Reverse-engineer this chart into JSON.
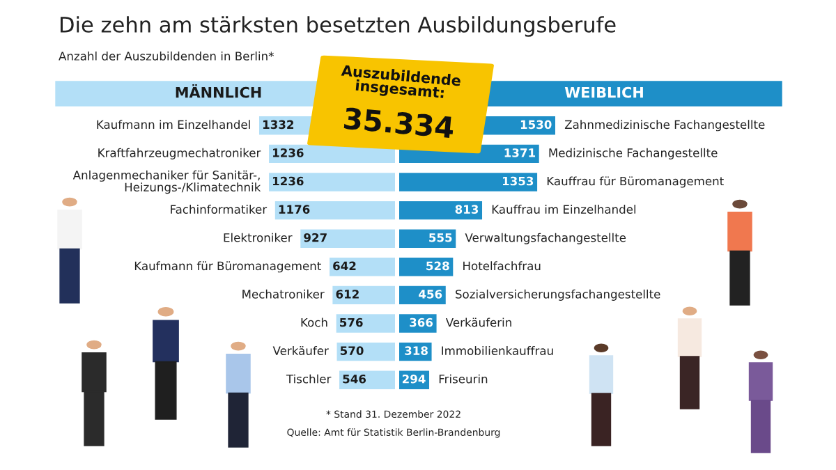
{
  "chart_data": [
    {
      "type": "bar",
      "orientation": "horizontal",
      "title": "Die zehn am stärksten besetzten Ausbildungsberufe",
      "subtitle": "Anzahl der Auszubildenden in Berlin*",
      "categories": [
        "Kaufmann im Einzelhandel",
        "Kraftfahrzeugmechatroniker",
        "Anlagenmechaniker für Sanitär-,\nHeizungs-/Klimatechnik",
        "Fachinformatiker",
        "Elektroniker",
        "Kaufmann für Büromanagement",
        "Mechatroniker",
        "Koch",
        "Verkäufer",
        "Tischler"
      ],
      "series": [
        {
          "name": "MÄNNLICH",
          "color": "#b3dff7",
          "values": [
            1332,
            1236,
            1236,
            1176,
            927,
            642,
            612,
            576,
            570,
            546
          ]
        }
      ],
      "tick_labels": false,
      "data_labels": true,
      "legend": "top",
      "annotations": [
        "Auszubildende insgesamt:",
        "35.334",
        "* Stand 31. Dezember 2022",
        "Quelle: Amt für Statistik Berlin-Brandenburg"
      ]
    },
    {
      "type": "bar",
      "orientation": "horizontal",
      "categories": [
        "Zahnmedizinische Fachangestellte",
        "Medizinische Fachangestellte",
        "Kauffrau für Büromanagement",
        "Kauffrau im Einzelhandel",
        "Verwaltungsfachangestellte",
        "Hotelfachfrau",
        "Sozialversicherungsfachangestellte",
        "Verkäuferin",
        "Immobilienkauffrau",
        "Friseurin"
      ],
      "series": [
        {
          "name": "WEIBLICH",
          "color": "#1e8fc8",
          "values": [
            1530,
            1371,
            1353,
            813,
            555,
            528,
            456,
            366,
            318,
            294
          ]
        }
      ],
      "tick_labels": false,
      "data_labels": true,
      "legend": "top"
    }
  ]
}
